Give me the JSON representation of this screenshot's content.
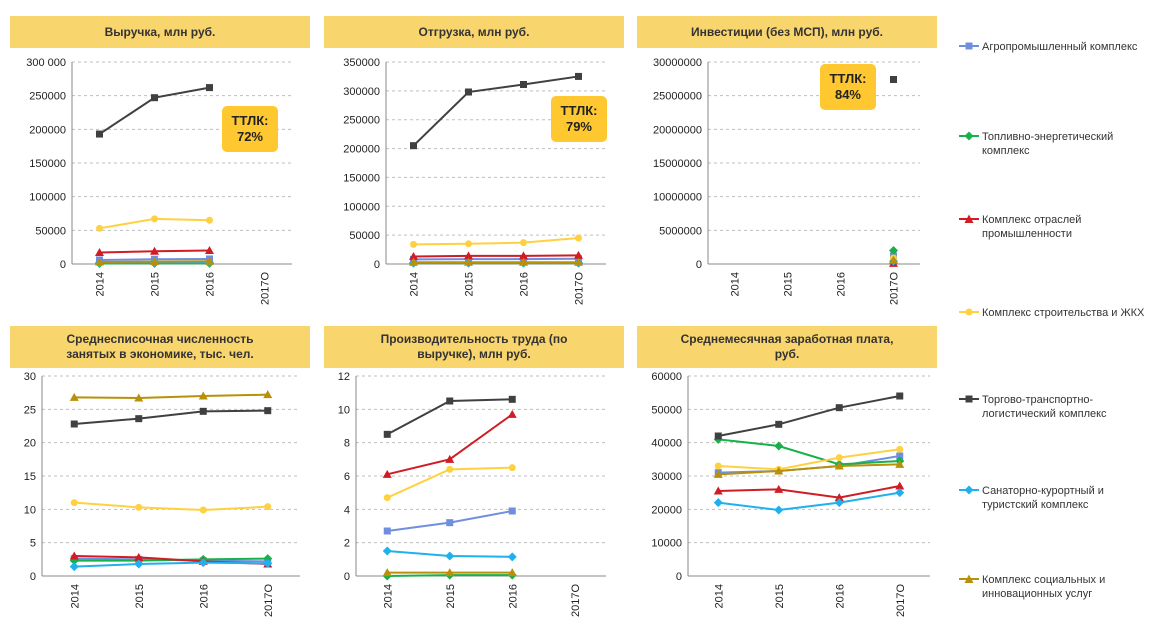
{
  "legend": [
    {
      "label": "Агропромышленный комплекс",
      "color": "#6f8fde",
      "marker": "square"
    },
    {
      "label": "Топливно-энергетический комплекс",
      "color": "#18b04a",
      "marker": "diamond"
    },
    {
      "label": "Комплекс отраслей промышленности",
      "color": "#d01c24",
      "marker": "triangle"
    },
    {
      "label": "Комплекс строительства и ЖКХ",
      "color": "#ffd140",
      "marker": "circle"
    },
    {
      "label": "Торгово-транспортно-логистический комплекс",
      "color": "#404040",
      "marker": "square"
    },
    {
      "label": "Санаторно-курортный и туристский комплекс",
      "color": "#1fb0ee",
      "marker": "diamond"
    },
    {
      "label": "Комплекс социальных и инновационных услуг",
      "color": "#b8900a",
      "marker": "triangle"
    }
  ],
  "chart_data": [
    {
      "type": "line",
      "title": "Выручка, млн руб.",
      "categories": [
        "2014",
        "2015",
        "2016",
        "2017О"
      ],
      "ylim": [
        0,
        300000
      ],
      "yticks": [
        0,
        50000,
        100000,
        150000,
        200000,
        250000,
        300000
      ],
      "yticklabels": [
        "0",
        "50000",
        "100000",
        "150000",
        "200000",
        "250000",
        "300 000"
      ],
      "grid": true,
      "annotation": "ТТЛК:\n72%",
      "series": [
        {
          "name": "Агропромышленный комплекс",
          "values": [
            6000,
            7000,
            7500,
            null
          ]
        },
        {
          "name": "Топливно-энергетический комплекс",
          "values": [
            800,
            1000,
            1000,
            null
          ]
        },
        {
          "name": "Комплекс отраслей промышленности",
          "values": [
            17000,
            19000,
            20000,
            null
          ]
        },
        {
          "name": "Комплекс строительства и ЖКХ",
          "values": [
            53000,
            67000,
            65000,
            null
          ]
        },
        {
          "name": "Торгово-транспортно-логистический комплекс",
          "values": [
            193000,
            247000,
            262000,
            null
          ]
        },
        {
          "name": "Санаторно-курортный и туристский комплекс",
          "values": [
            2000,
            2500,
            2500,
            null
          ]
        },
        {
          "name": "Комплекс социальных и инновационных услуг",
          "values": [
            3000,
            3500,
            4000,
            null
          ]
        }
      ]
    },
    {
      "type": "line",
      "title": "Отгрузка, млн руб.",
      "categories": [
        "2014",
        "2015",
        "2016",
        "2017О"
      ],
      "ylim": [
        0,
        350000
      ],
      "yticks": [
        0,
        50000,
        100000,
        150000,
        200000,
        250000,
        300000,
        350000
      ],
      "yticklabels": [
        "0",
        "50000",
        "100000",
        "150000",
        "200000",
        "250000",
        "300000",
        "350000"
      ],
      "grid": true,
      "annotation": "ТТЛК:\n79%",
      "series": [
        {
          "name": "Агропромышленный комплекс",
          "values": [
            8000,
            8500,
            8500,
            9000
          ]
        },
        {
          "name": "Топливно-энергетический комплекс",
          "values": [
            1500,
            1500,
            1500,
            1500
          ]
        },
        {
          "name": "Комплекс отраслей промышленности",
          "values": [
            13000,
            14000,
            14000,
            15000
          ]
        },
        {
          "name": "Комплекс строительства и ЖКХ",
          "values": [
            34000,
            35000,
            37000,
            45000
          ]
        },
        {
          "name": "Торгово-транспортно-логистический комплекс",
          "values": [
            205000,
            298000,
            311000,
            325000
          ]
        },
        {
          "name": "Санаторно-курортный и туристский комплекс",
          "values": [
            2000,
            2000,
            2000,
            2000
          ]
        },
        {
          "name": "Комплекс социальных и инновационных услуг",
          "values": [
            3000,
            3000,
            3000,
            3000
          ]
        }
      ]
    },
    {
      "type": "line",
      "title": "Инвестиции (без МСП), млн руб.",
      "categories": [
        "2014",
        "2015",
        "2016",
        "2017О"
      ],
      "ylim": [
        0,
        30000000
      ],
      "yticks": [
        0,
        5000000,
        10000000,
        15000000,
        20000000,
        25000000,
        30000000
      ],
      "yticklabels": [
        "0",
        "5000000",
        "10000000",
        "15000000",
        "20000000",
        "25000000",
        "30000000"
      ],
      "grid": true,
      "annotation": "ТТЛК:\n84%",
      "series": [
        {
          "name": "Агропромышленный комплекс",
          "values": [
            null,
            null,
            null,
            1200000
          ]
        },
        {
          "name": "Топливно-энергетический комплекс",
          "values": [
            null,
            null,
            null,
            2000000
          ]
        },
        {
          "name": "Комплекс отраслей промышленности",
          "values": [
            null,
            null,
            null,
            100000
          ]
        },
        {
          "name": "Комплекс строительства и ЖКХ",
          "values": [
            null,
            null,
            null,
            900000
          ]
        },
        {
          "name": "Торгово-транспортно-логистический комплекс",
          "values": [
            null,
            null,
            null,
            27400000
          ]
        },
        {
          "name": "Санаторно-курортный и туристский комплекс",
          "values": [
            null,
            null,
            null,
            400000
          ]
        },
        {
          "name": "Комплекс социальных и инновационных услуг",
          "values": [
            null,
            null,
            null,
            600000
          ]
        }
      ]
    },
    {
      "type": "line",
      "title": "Среднесписочная численность\nзанятых в экономике, тыс. чел.",
      "categories": [
        "2014",
        "2015",
        "2016",
        "2017О"
      ],
      "ylim": [
        0,
        30
      ],
      "yticks": [
        0,
        5,
        10,
        15,
        20,
        25,
        30
      ],
      "yticklabels": [
        "0",
        "5",
        "10",
        "15",
        "20",
        "25",
        "30"
      ],
      "grid": true,
      "annotation": "",
      "series": [
        {
          "name": "Агропромышленный комплекс",
          "values": [
            2.6,
            2.5,
            2.3,
            2.2
          ]
        },
        {
          "name": "Топливно-энергетический комплекс",
          "values": [
            2.3,
            2.3,
            2.5,
            2.6
          ]
        },
        {
          "name": "Комплекс отраслей промышленности",
          "values": [
            3.0,
            2.8,
            2.2,
            1.8
          ]
        },
        {
          "name": "Комплекс строительства и ЖКХ",
          "values": [
            11.0,
            10.3,
            9.9,
            10.4
          ]
        },
        {
          "name": "Торгово-транспортно-логистический комплекс",
          "values": [
            22.8,
            23.6,
            24.7,
            24.8
          ]
        },
        {
          "name": "Санаторно-курортный и туристский комплекс",
          "values": [
            1.4,
            1.8,
            2.0,
            1.9
          ]
        },
        {
          "name": "Комплекс социальных и инновационных услуг",
          "values": [
            26.8,
            26.7,
            27.0,
            27.2
          ]
        }
      ]
    },
    {
      "type": "line",
      "title": "Производительность труда (по\nвыручке), млн руб.",
      "categories": [
        "2014",
        "2015",
        "2016",
        "2017О"
      ],
      "ylim": [
        0,
        12
      ],
      "yticks": [
        0,
        2,
        4,
        6,
        8,
        10,
        12
      ],
      "yticklabels": [
        "0",
        "2",
        "4",
        "6",
        "8",
        "10",
        "12"
      ],
      "grid": true,
      "annotation": "",
      "series": [
        {
          "name": "Агропромышленный комплекс",
          "values": [
            2.7,
            3.2,
            3.9,
            null
          ]
        },
        {
          "name": "Топливно-энергетический комплекс",
          "values": [
            0.0,
            0.05,
            0.05,
            null
          ]
        },
        {
          "name": "Комплекс отраслей промышленности",
          "values": [
            6.1,
            7.0,
            9.7,
            null
          ]
        },
        {
          "name": "Комплекс строительства и ЖКХ",
          "values": [
            4.7,
            6.4,
            6.5,
            null
          ]
        },
        {
          "name": "Торгово-транспортно-логистический комплекс",
          "values": [
            8.5,
            10.5,
            10.6,
            null
          ]
        },
        {
          "name": "Санаторно-курортный и туристский комплекс",
          "values": [
            1.5,
            1.2,
            1.15,
            null
          ]
        },
        {
          "name": "Комплекс социальных и инновационных услуг",
          "values": [
            0.2,
            0.2,
            0.2,
            null
          ]
        }
      ]
    },
    {
      "type": "line",
      "title": "Среднемесячная заработная плата,\nруб.",
      "categories": [
        "2014",
        "2015",
        "2016",
        "2017О"
      ],
      "ylim": [
        0,
        60000
      ],
      "yticks": [
        0,
        10000,
        20000,
        30000,
        40000,
        50000,
        60000
      ],
      "yticklabels": [
        "0",
        "10000",
        "20000",
        "30000",
        "40000",
        "50000",
        "60000"
      ],
      "grid": true,
      "annotation": "",
      "series": [
        {
          "name": "Агропромышленный комплекс",
          "values": [
            31000,
            31500,
            33000,
            36000
          ]
        },
        {
          "name": "Топливно-энергетический комплекс",
          "values": [
            41000,
            39000,
            33500,
            34500
          ]
        },
        {
          "name": "Комплекс отраслей промышленности",
          "values": [
            25500,
            26000,
            23500,
            27000
          ]
        },
        {
          "name": "Комплекс строительства и ЖКХ",
          "values": [
            33000,
            32000,
            35500,
            38000
          ]
        },
        {
          "name": "Торгово-транспортно-логистический комплекс",
          "values": [
            42000,
            45500,
            50500,
            54000
          ]
        },
        {
          "name": "Санаторно-курортный и туристский комплекс",
          "values": [
            22000,
            19800,
            22000,
            25000
          ]
        },
        {
          "name": "Комплекс социальных и инновационных услуг",
          "values": [
            30500,
            31500,
            33000,
            33500
          ]
        }
      ]
    }
  ]
}
